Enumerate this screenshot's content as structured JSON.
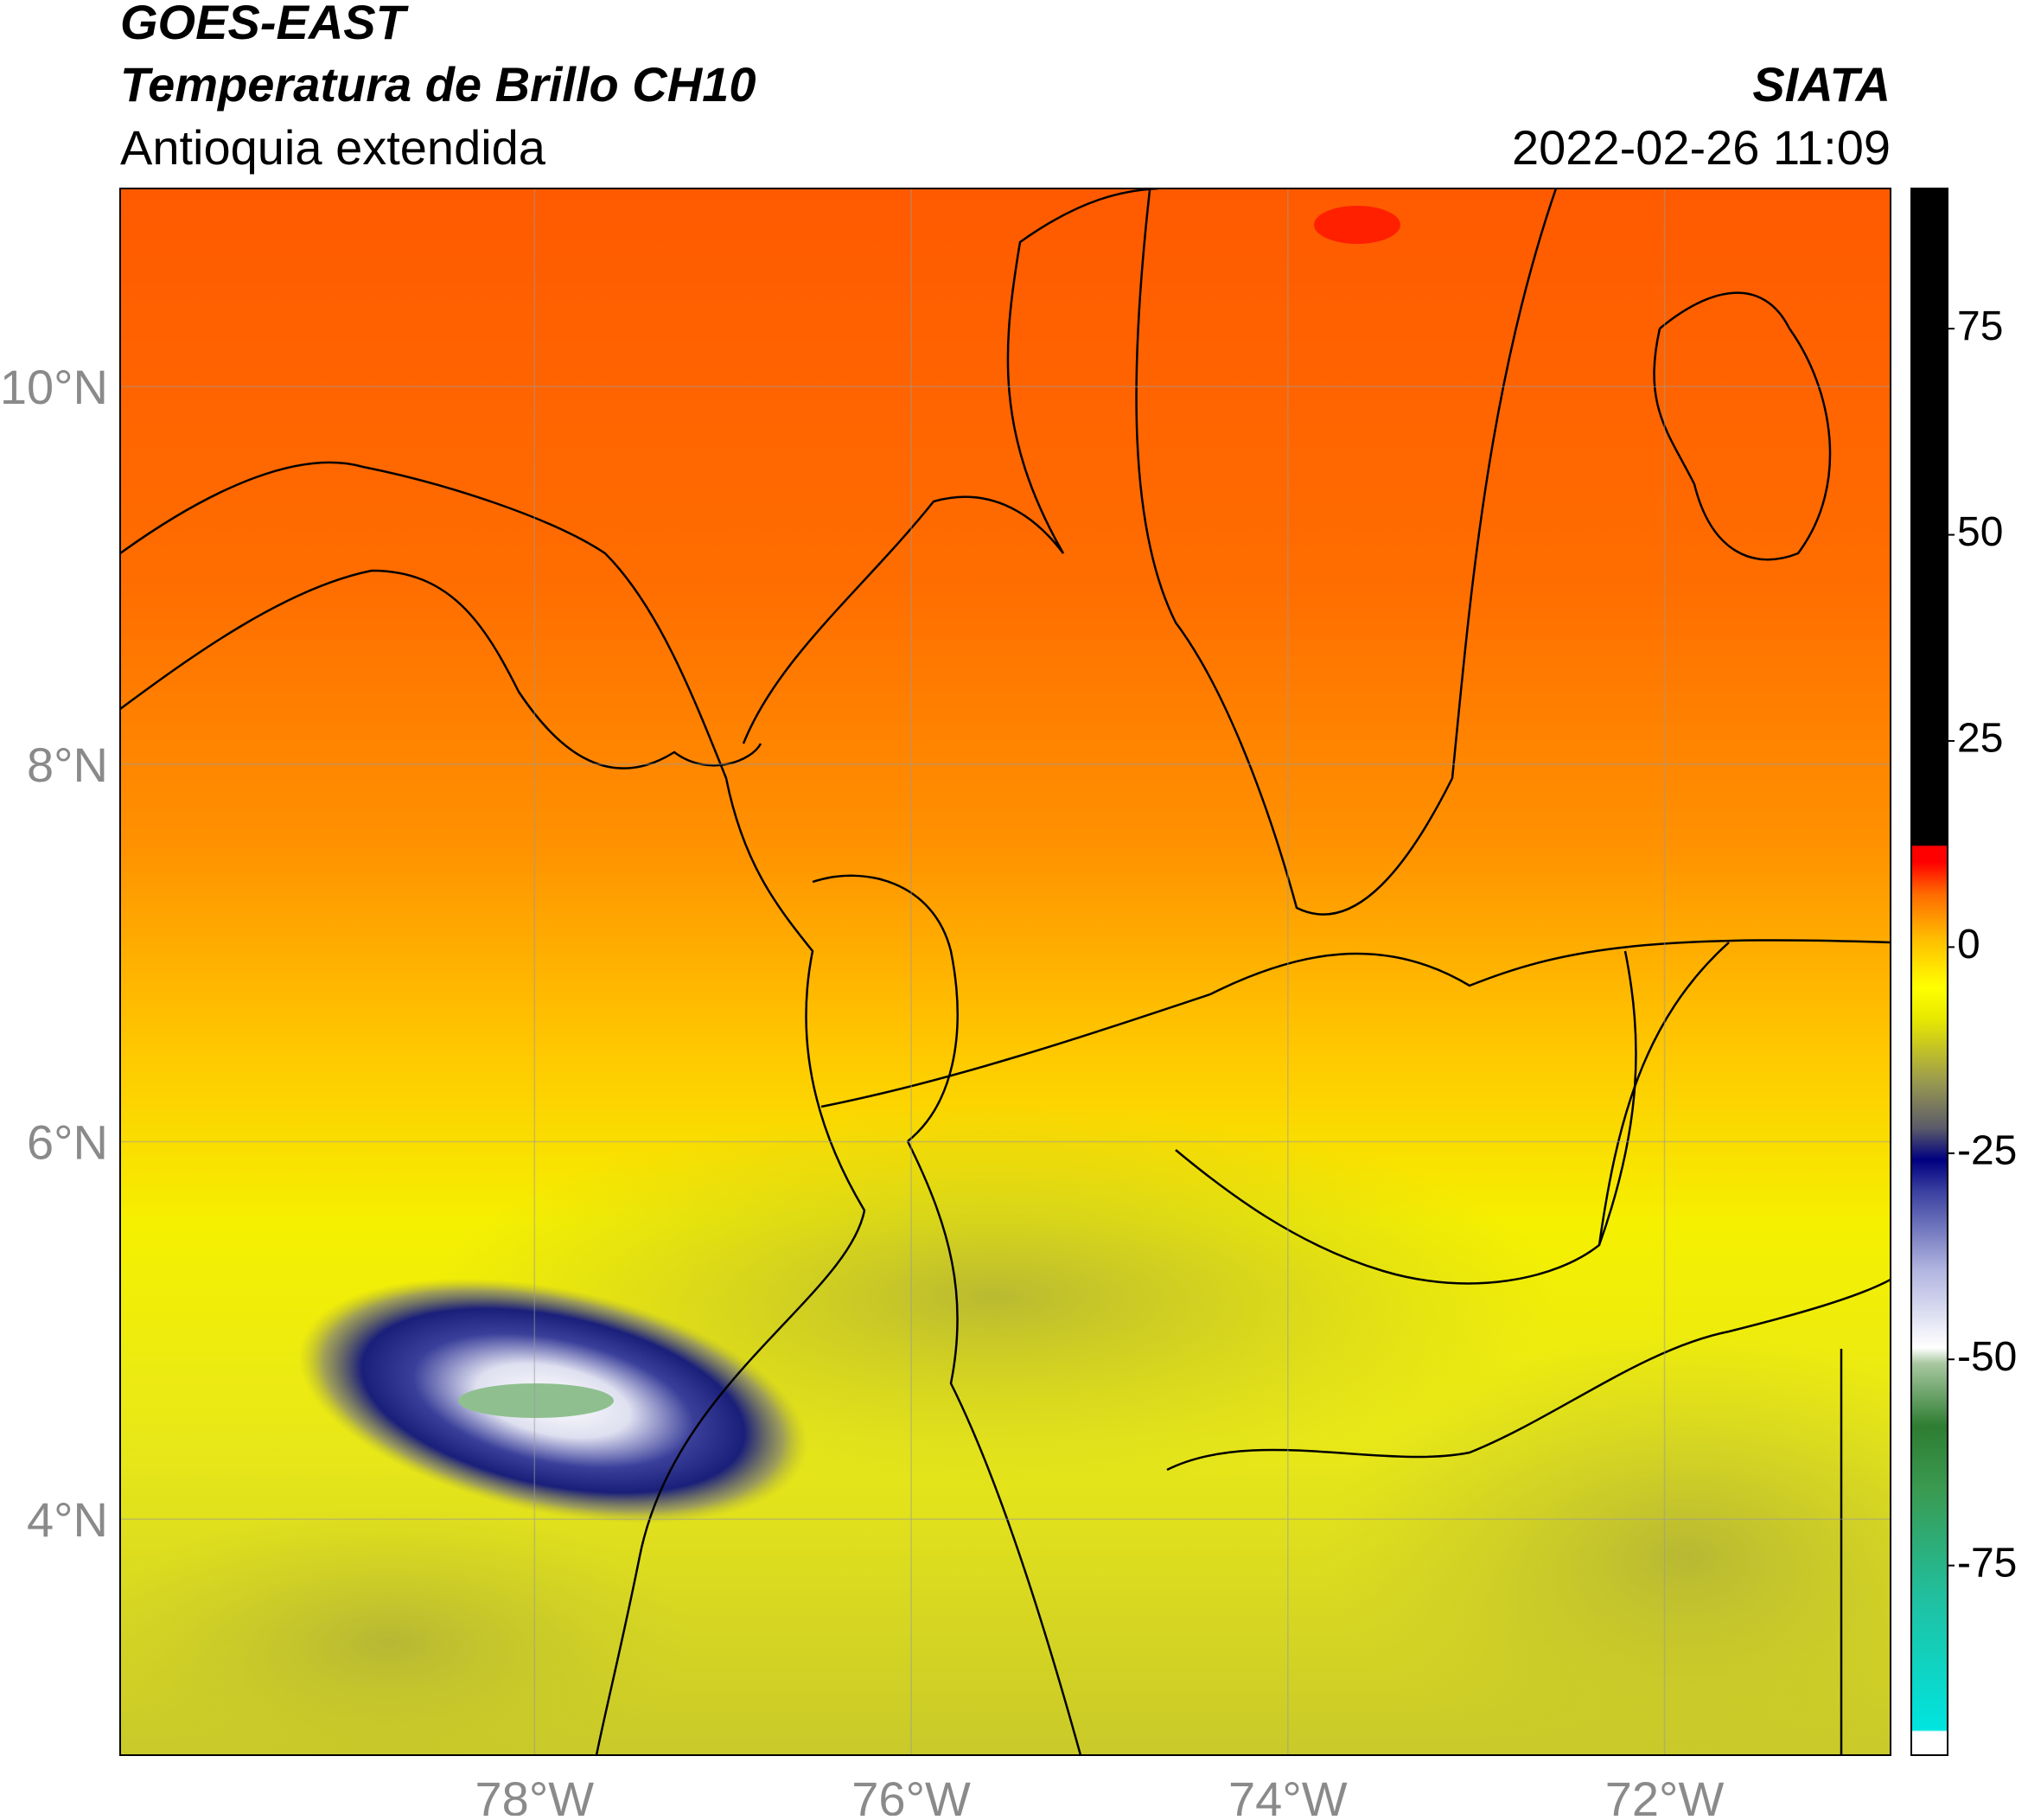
{
  "header": {
    "satellite": "GOES-EAST",
    "product": "Temperatura de Brillo CH10",
    "region": "Antioquia extendida",
    "source": "SIATA",
    "timestamp": "2022-02-26 11:09"
  },
  "map": {
    "xlim": [
      -80.2,
      -70.8
    ],
    "ylim": [
      2.75,
      11.05
    ],
    "xticks": [
      {
        "value": -78,
        "label": "78°W"
      },
      {
        "value": -76,
        "label": "76°W"
      },
      {
        "value": -74,
        "label": "74°W"
      },
      {
        "value": -72,
        "label": "72°W"
      }
    ],
    "yticks": [
      {
        "value": 4,
        "label": "4°N"
      },
      {
        "value": 6,
        "label": "6°N"
      },
      {
        "value": 8,
        "label": "8°N"
      },
      {
        "value": 10,
        "label": "10°N"
      }
    ],
    "grid": true
  },
  "colorbar": {
    "lim": [
      -98,
      92
    ],
    "ticks": [
      -75,
      -50,
      -25,
      0,
      25,
      50,
      75
    ]
  }
}
